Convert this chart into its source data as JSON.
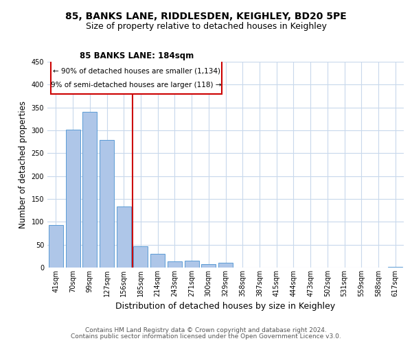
{
  "title": "85, BANKS LANE, RIDDLESDEN, KEIGHLEY, BD20 5PE",
  "subtitle": "Size of property relative to detached houses in Keighley",
  "xlabel": "Distribution of detached houses by size in Keighley",
  "ylabel": "Number of detached properties",
  "footnote1": "Contains HM Land Registry data © Crown copyright and database right 2024.",
  "footnote2": "Contains public sector information licensed under the Open Government Licence v3.0.",
  "bin_labels": [
    "41sqm",
    "70sqm",
    "99sqm",
    "127sqm",
    "156sqm",
    "185sqm",
    "214sqm",
    "243sqm",
    "271sqm",
    "300sqm",
    "329sqm",
    "358sqm",
    "387sqm",
    "415sqm",
    "444sqm",
    "473sqm",
    "502sqm",
    "531sqm",
    "559sqm",
    "588sqm",
    "617sqm"
  ],
  "bar_values": [
    93,
    301,
    341,
    279,
    133,
    47,
    30,
    13,
    15,
    8,
    10,
    0,
    0,
    0,
    0,
    0,
    0,
    0,
    0,
    0,
    2
  ],
  "bar_color": "#aec6e8",
  "bar_edge_color": "#5b9bd5",
  "vline_color": "#cc0000",
  "vline_index": 4.5,
  "annotation_text_line1": "85 BANKS LANE: 184sqm",
  "annotation_text_line2": "← 90% of detached houses are smaller (1,134)",
  "annotation_text_line3": "9% of semi-detached houses are larger (118) →",
  "ylim": [
    0,
    450
  ],
  "yticks": [
    0,
    50,
    100,
    150,
    200,
    250,
    300,
    350,
    400,
    450
  ],
  "background_color": "#ffffff",
  "grid_color": "#c8d8ec",
  "title_fontsize": 10,
  "subtitle_fontsize": 9,
  "ylabel_fontsize": 8.5,
  "xlabel_fontsize": 9,
  "tick_fontsize": 7,
  "footnote_fontsize": 6.5
}
